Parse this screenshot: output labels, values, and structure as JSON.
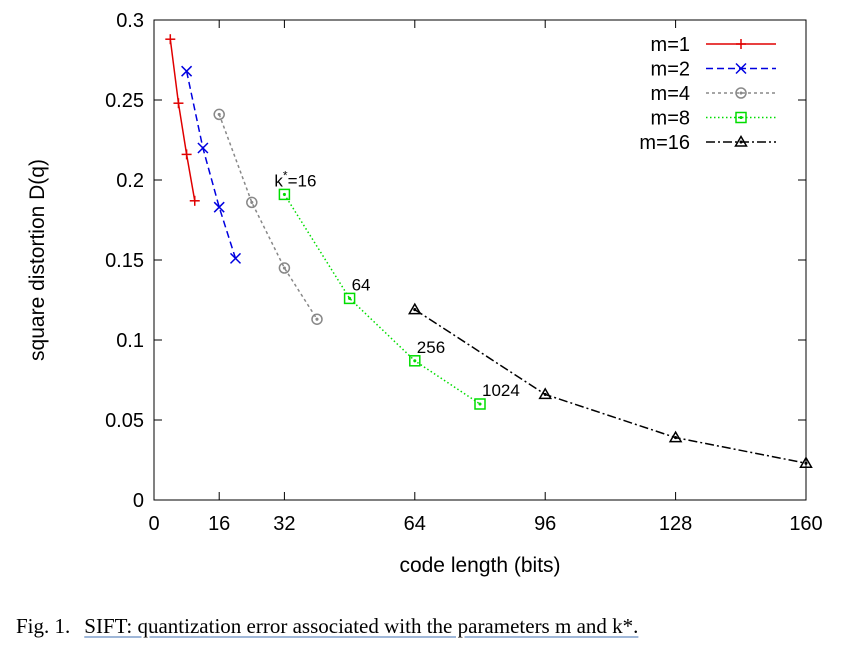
{
  "chart_data": {
    "type": "line",
    "xlabel": "code length (bits)",
    "ylabel": "square distortion D(q)",
    "xlim": [
      0,
      160
    ],
    "ylim": [
      0,
      0.3
    ],
    "xticks": [
      0,
      16,
      32,
      64,
      96,
      128,
      160
    ],
    "yticks": [
      0,
      0.05,
      0.1,
      0.15,
      0.2,
      0.25,
      0.3
    ],
    "ytick_labels": [
      "0",
      "0.05",
      "0.1",
      "0.15",
      "0.2",
      "0.25",
      "0.3"
    ],
    "grid": false,
    "legend_position": "top-right",
    "series": [
      {
        "name": "m=1",
        "color": "#e00000",
        "dash": "",
        "marker": "plus",
        "x": [
          4,
          6,
          8,
          10
        ],
        "y": [
          0.288,
          0.248,
          0.216,
          0.187
        ]
      },
      {
        "name": "m=2",
        "color": "#0000e0",
        "dash": "7,4",
        "marker": "cross",
        "x": [
          8,
          12,
          16,
          20
        ],
        "y": [
          0.268,
          0.22,
          0.183,
          0.151
        ]
      },
      {
        "name": "m=4",
        "color": "#888888",
        "dash": "3,3",
        "marker": "circle",
        "x": [
          16,
          24,
          32,
          40
        ],
        "y": [
          0.241,
          0.186,
          0.145,
          0.113
        ]
      },
      {
        "name": "m=8",
        "color": "#00dd00",
        "dash": "1.5,2.5",
        "marker": "square",
        "x": [
          32,
          48,
          64,
          80
        ],
        "y": [
          0.191,
          0.126,
          0.087,
          0.06
        ]
      },
      {
        "name": "m=16",
        "color": "#000000",
        "dash": "9,3,2,3",
        "marker": "triangle",
        "x": [
          64,
          96,
          128,
          160
        ],
        "y": [
          0.119,
          0.066,
          0.039,
          0.023
        ]
      }
    ],
    "annotations": [
      {
        "text": "k",
        "sup": "*",
        "suffix": "=16",
        "x": 32,
        "y": 0.191
      },
      {
        "text": "64",
        "x": 48,
        "y": 0.126
      },
      {
        "text": "256",
        "x": 64,
        "y": 0.087
      },
      {
        "text": "1024",
        "x": 80,
        "y": 0.06
      }
    ]
  },
  "caption": {
    "label": "Fig. 1.",
    "text": "SIFT: quantization error associated with the parameters m and k*."
  }
}
